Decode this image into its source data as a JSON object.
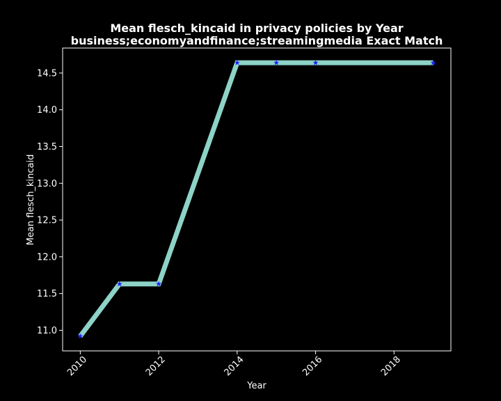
{
  "chart_data": {
    "type": "line",
    "title_line1": "Mean flesch_kincaid in privacy policies by Year",
    "title_line2": "business;economyandfinance;streamingmedia Exact Match",
    "xlabel": "Year",
    "ylabel": "Mean flesch_kincaid",
    "x": [
      2010,
      2011,
      2012,
      2014,
      2015,
      2016,
      2019
    ],
    "y": [
      10.92,
      11.63,
      11.63,
      14.64,
      14.64,
      14.64,
      14.64
    ],
    "xlim": [
      2009.55,
      2019.45
    ],
    "ylim": [
      10.72,
      14.84
    ],
    "xticks": [
      2010,
      2012,
      2014,
      2016,
      2018
    ],
    "xtick_labels": [
      "2010",
      "2012",
      "2014",
      "2016",
      "2018"
    ],
    "yticks": [
      11.0,
      11.5,
      12.0,
      12.5,
      13.0,
      13.5,
      14.0,
      14.5
    ],
    "ytick_labels": [
      "11.0",
      "11.5",
      "12.0",
      "12.5",
      "13.0",
      "13.5",
      "14.0",
      "14.5"
    ],
    "line_color": "#8dd3c7",
    "marker_color": "#1f1fff",
    "marker": "star",
    "background": "#000000",
    "grid": false,
    "legend": "none"
  }
}
